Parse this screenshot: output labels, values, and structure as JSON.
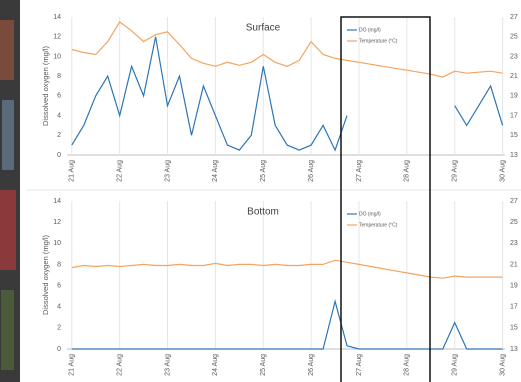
{
  "chart_data": [
    {
      "type": "line",
      "title": "Surface",
      "y_label": "Dissolved oxygen (mg/l)",
      "x": [
        21,
        21.25,
        21.5,
        21.75,
        22,
        22.25,
        22.5,
        22.75,
        23,
        23.25,
        23.5,
        23.75,
        24,
        24.25,
        24.5,
        24.75,
        25,
        25.25,
        25.5,
        25.75,
        26,
        26.25,
        26.5,
        26.75,
        27,
        27.25,
        27.5,
        27.75,
        28,
        28.25,
        28.5,
        28.75,
        29,
        29.25,
        29.5,
        29.75,
        30
      ],
      "series": [
        {
          "name": "DO (mg/l)",
          "color": "#2e75b6",
          "axis": "y",
          "values": [
            1,
            3,
            6,
            8,
            4,
            9,
            6,
            12,
            5,
            8,
            2,
            7,
            4,
            1,
            0.5,
            2,
            9,
            3,
            1,
            0.5,
            1,
            3,
            0.5,
            4,
            null,
            null,
            null,
            null,
            null,
            null,
            null,
            null,
            5,
            3,
            5,
            7,
            3
          ]
        },
        {
          "name": "Temperature (°C)",
          "color": "#f4a460",
          "axis": "y2",
          "values": [
            23.7,
            23.4,
            23.2,
            24.5,
            26.5,
            25.6,
            24.5,
            25.2,
            25.5,
            24.2,
            22.8,
            22.3,
            22.0,
            22.4,
            22.1,
            22.4,
            23.2,
            22.4,
            22.0,
            22.6,
            24.5,
            23.2,
            22.8,
            22.6,
            22.4,
            22.2,
            22.0,
            21.8,
            21.6,
            21.4,
            21.2,
            20.9,
            21.5,
            21.3,
            21.4,
            21.5,
            21.3
          ]
        }
      ],
      "xlim": [
        20.9,
        30.05
      ],
      "xticks": [
        {
          "value": 21,
          "label": "21 Aug"
        },
        {
          "value": 22,
          "label": "22 Aug"
        },
        {
          "value": 23,
          "label": "23 Aug"
        },
        {
          "value": 24,
          "label": "24 Aug"
        },
        {
          "value": 25,
          "label": "25 Aug"
        },
        {
          "value": 26,
          "label": "26 Aug"
        },
        {
          "value": 27,
          "label": "27 Aug"
        },
        {
          "value": 28,
          "label": "28 Aug"
        },
        {
          "value": 29,
          "label": "29 Aug"
        },
        {
          "value": 30,
          "label": "30 Aug"
        }
      ],
      "ylim": [
        0,
        14
      ],
      "yticks": [
        0,
        2,
        4,
        6,
        8,
        10,
        12,
        14
      ],
      "y2lim": [
        13,
        27
      ],
      "y2ticks": [
        13,
        15,
        17,
        19,
        21,
        23,
        25,
        27
      ],
      "grid": "x"
    },
    {
      "type": "line",
      "title": "Bottom",
      "y_label": "Dissolved oxygen (mg/l)",
      "x": [
        21,
        21.25,
        21.5,
        21.75,
        22,
        22.25,
        22.5,
        22.75,
        23,
        23.25,
        23.5,
        23.75,
        24,
        24.25,
        24.5,
        24.75,
        25,
        25.25,
        25.5,
        25.75,
        26,
        26.25,
        26.5,
        26.75,
        27,
        27.25,
        27.5,
        27.75,
        28,
        28.25,
        28.5,
        28.75,
        29,
        29.25,
        29.5,
        29.75,
        30
      ],
      "series": [
        {
          "name": "DO (mg/l)",
          "color": "#2e75b6",
          "axis": "y",
          "values": [
            0,
            0,
            0,
            0,
            0,
            0,
            0,
            0,
            0,
            0,
            0,
            0,
            0,
            0,
            0,
            0,
            0,
            0,
            0,
            0,
            0,
            0,
            4.5,
            0.3,
            0,
            0,
            0,
            0,
            0,
            0,
            0,
            0,
            2.5,
            0,
            0,
            0,
            0
          ]
        },
        {
          "name": "Temperature (°C)",
          "color": "#f4a460",
          "axis": "y2",
          "values": [
            20.7,
            20.9,
            20.8,
            20.9,
            20.8,
            20.9,
            21.0,
            20.9,
            20.9,
            21.0,
            20.9,
            20.9,
            21.1,
            20.9,
            21.0,
            21.0,
            20.9,
            21.0,
            20.9,
            20.9,
            21.0,
            21.0,
            21.4,
            21.2,
            21.0,
            20.8,
            20.6,
            20.4,
            20.2,
            20.0,
            19.8,
            19.7,
            19.9,
            19.8,
            19.8,
            19.8,
            19.8
          ]
        }
      ],
      "xlim": [
        20.9,
        30.05
      ],
      "xticks": [
        {
          "value": 21,
          "label": "21 Aug"
        },
        {
          "value": 22,
          "label": "22 Aug"
        },
        {
          "value": 23,
          "label": "23 Aug"
        },
        {
          "value": 24,
          "label": "24 Aug"
        },
        {
          "value": 25,
          "label": "25 Aug"
        },
        {
          "value": 26,
          "label": "26 Aug"
        },
        {
          "value": 27,
          "label": "27 Aug"
        },
        {
          "value": 28,
          "label": "28 Aug"
        },
        {
          "value": 29,
          "label": "29 Aug"
        },
        {
          "value": 30,
          "label": "30 Aug"
        }
      ],
      "ylim": [
        0,
        14
      ],
      "yticks": [
        0,
        2,
        4,
        6,
        8,
        10,
        12,
        14
      ],
      "y2lim": [
        13,
        27
      ],
      "y2ticks": [
        13,
        15,
        17,
        19,
        21,
        23,
        25,
        27
      ],
      "grid": "x"
    }
  ]
}
